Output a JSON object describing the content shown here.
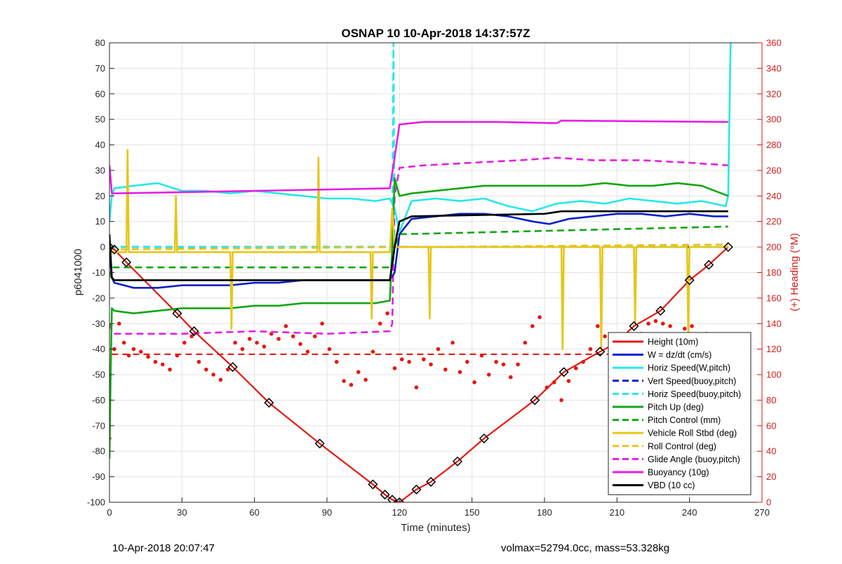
{
  "chart_data": {
    "type": "line",
    "title": "OSNAP 10 10-Apr-2018 14:37:57Z",
    "xlabel": "Time (minutes)",
    "ylabel": "p6041000",
    "y2label": "(+) Heading (°M)",
    "xlim": [
      0,
      270
    ],
    "ylim": [
      -100,
      80
    ],
    "y2lim": [
      0,
      360
    ],
    "xticks": [
      0,
      30,
      60,
      90,
      120,
      150,
      180,
      210,
      240,
      270
    ],
    "yticks": [
      -100,
      -90,
      -80,
      -70,
      -60,
      -50,
      -40,
      -30,
      -20,
      -10,
      0,
      10,
      20,
      30,
      40,
      50,
      60,
      70,
      80
    ],
    "y2ticks": [
      0,
      20,
      40,
      60,
      80,
      100,
      120,
      140,
      160,
      180,
      200,
      220,
      240,
      260,
      280,
      300,
      320,
      340,
      360
    ],
    "grid": true,
    "legend_position": "bottom-right",
    "colors": {
      "red": "#e8170f",
      "blue": "#0a1fc9",
      "cyan": "#27e8e8",
      "green": "#14a614",
      "yellow": "#e6c619",
      "magenta": "#e31fe3",
      "black": "#000000",
      "right_axis": "#d41a1a"
    },
    "series": [
      {
        "name": "Height (10m)",
        "color": "red",
        "dash": false,
        "x": [
          0,
          2,
          7,
          28,
          35,
          51,
          66,
          87,
          109,
          114,
          117,
          120,
          127,
          133,
          144,
          155,
          176,
          188,
          203,
          209,
          217,
          228,
          240,
          248,
          256
        ],
        "y": [
          0,
          -1,
          -6,
          -26,
          -33,
          -47,
          -61,
          -77,
          -93,
          -97,
          -99,
          -100,
          -95,
          -92,
          -84,
          -75,
          -60,
          -49,
          -41,
          -38,
          -31,
          -25,
          -13,
          -7,
          0
        ]
      },
      {
        "name": "W = dz/dt (cm/s)",
        "color": "blue",
        "dash": false,
        "x": [
          0,
          1,
          2,
          10,
          20,
          30,
          40,
          50,
          60,
          70,
          80,
          90,
          100,
          110,
          116,
          118,
          120,
          125,
          135,
          145,
          155,
          165,
          175,
          182,
          190,
          200,
          210,
          220,
          230,
          240,
          250,
          256
        ],
        "y": [
          -2,
          -12,
          -14,
          -16,
          -16,
          -15,
          -15,
          -15,
          -14,
          -14,
          -13,
          -13,
          -13,
          -13,
          -13,
          -10,
          5,
          11,
          12,
          13,
          13,
          12,
          10,
          9,
          11,
          12,
          13,
          13,
          12,
          13,
          12,
          12
        ]
      },
      {
        "name": "Horiz Speed(W,pitch)",
        "color": "cyan",
        "dash": false,
        "x": [
          0,
          1,
          2,
          10,
          20,
          30,
          40,
          50,
          60,
          70,
          80,
          90,
          100,
          110,
          116,
          118,
          120,
          125,
          135,
          145,
          155,
          165,
          175,
          185,
          195,
          205,
          215,
          225,
          235,
          245,
          255,
          256,
          257
        ],
        "y": [
          10,
          20,
          23,
          24,
          25,
          22,
          22,
          21,
          22,
          21,
          20,
          19,
          19,
          18,
          19,
          15,
          6,
          18,
          19,
          18,
          19,
          16,
          14,
          17,
          18,
          17,
          19,
          18,
          17,
          18,
          16,
          20,
          80
        ]
      },
      {
        "name": "Vert Speed(buoy,pitch)",
        "color": "blue",
        "dash": true,
        "x": [
          0,
          256
        ],
        "y": [
          0,
          0
        ]
      },
      {
        "name": "Horiz Speed(buoy,pitch)",
        "color": "cyan",
        "dash": true,
        "x": [
          0,
          117,
          117.5,
          118,
          119,
          256
        ],
        "y": [
          0,
          0,
          80,
          0,
          0,
          0
        ]
      },
      {
        "name": "Pitch Up (deg)",
        "color": "green",
        "dash": false,
        "x": [
          0,
          0.5,
          1,
          2,
          10,
          20,
          30,
          40,
          50,
          60,
          70,
          80,
          90,
          100,
          110,
          116,
          117,
          118,
          120,
          125,
          135,
          145,
          155,
          165,
          175,
          185,
          195,
          205,
          215,
          225,
          235,
          245,
          256
        ],
        "y": [
          -83,
          -50,
          -24,
          -25,
          -26,
          -25,
          -24,
          -24,
          -24,
          -23,
          -23,
          -22,
          -22,
          -22,
          -22,
          -21,
          0,
          27,
          20,
          21,
          22,
          23,
          24,
          24,
          24,
          24,
          24,
          25,
          24,
          24,
          25,
          24,
          20
        ]
      },
      {
        "name": "Pitch Control (mm)",
        "color": "green",
        "dash": true,
        "x": [
          0,
          1,
          2,
          116,
          117,
          118,
          120,
          256
        ],
        "y": [
          -12,
          -8,
          -8,
          -8,
          -8,
          0,
          5,
          8
        ]
      },
      {
        "name": "Vehicle Roll Stbd (deg)",
        "color": "yellow",
        "dash": false,
        "x": [
          0,
          7,
          7.5,
          8,
          10,
          27,
          27.5,
          28,
          30,
          50,
          50.5,
          51,
          55,
          86,
          86.5,
          87,
          90,
          108,
          108.5,
          109,
          116,
          117,
          118,
          120,
          132,
          132.5,
          133,
          135,
          187,
          187.5,
          188,
          190,
          203,
          203.5,
          204,
          206,
          217,
          217.5,
          218,
          220,
          239,
          239.5,
          240,
          242,
          255,
          256
        ],
        "y": [
          -2,
          -2,
          38,
          -2,
          -2,
          -2,
          20,
          -2,
          -2,
          -2,
          -32,
          -2,
          -2,
          -2,
          35,
          -2,
          -2,
          -2,
          -28,
          -2,
          -2,
          15,
          0,
          0,
          0,
          -28,
          0,
          0,
          0,
          -40,
          0,
          0,
          0,
          -40,
          0,
          0,
          0,
          -30,
          0,
          0,
          0,
          -35,
          0,
          0,
          0,
          0
        ]
      },
      {
        "name": "Roll Control (deg)",
        "color": "yellow",
        "dash": true,
        "x": [
          0,
          256
        ],
        "y": [
          -1,
          1
        ]
      },
      {
        "name": "Glide Angle (buoy,pitch)",
        "color": "magenta",
        "dash": true,
        "x": [
          0,
          1,
          2,
          10,
          30,
          60,
          90,
          116,
          117,
          118,
          120,
          130,
          150,
          170,
          185,
          200,
          220,
          240,
          256
        ],
        "y": [
          -30,
          -33,
          -34,
          -34,
          -34,
          -33,
          -34,
          -33,
          -30,
          20,
          31,
          32,
          33,
          34,
          35,
          34,
          34,
          33,
          32
        ]
      },
      {
        "name": "Buoyancy (10g)",
        "color": "magenta",
        "dash": false,
        "x": [
          0,
          1,
          2,
          60,
          116,
          118,
          120,
          130,
          160,
          185,
          187,
          256
        ],
        "y": [
          32,
          21,
          21,
          22,
          23,
          35,
          48,
          49,
          49,
          48.5,
          49.5,
          49
        ]
      },
      {
        "name": "VBD (10 cc)",
        "color": "black",
        "dash": false,
        "x": [
          0,
          1,
          2,
          116,
          118,
          120,
          125,
          180,
          187,
          200,
          256
        ],
        "y": [
          5,
          -12,
          -13,
          -13,
          0,
          10,
          12,
          13,
          14,
          14,
          14
        ]
      }
    ],
    "heading": {
      "color": "red",
      "mean_heading": 116,
      "x": [
        0,
        2,
        4,
        6,
        8,
        10,
        13,
        16,
        19,
        22,
        25,
        28,
        31,
        34,
        37,
        40,
        43,
        46,
        49,
        52,
        55,
        58,
        61,
        64,
        67,
        70,
        73,
        76,
        79,
        82,
        85,
        88,
        91,
        94,
        97,
        100,
        103,
        106,
        109,
        112,
        115,
        118,
        121,
        124,
        127,
        130,
        133,
        136,
        139,
        142,
        145,
        148,
        151,
        154,
        157,
        160,
        163,
        166,
        169,
        172,
        175,
        178,
        181,
        184,
        187,
        190,
        193,
        196,
        199,
        202,
        205,
        208,
        211,
        214,
        217,
        220,
        223,
        226,
        229,
        232,
        235,
        238,
        241,
        244,
        247,
        250,
        253,
        256
      ],
      "y": [
        50,
        120,
        140,
        125,
        115,
        120,
        118,
        114,
        110,
        108,
        104,
        115,
        125,
        130,
        110,
        104,
        100,
        96,
        104,
        125,
        120,
        128,
        125,
        122,
        132,
        128,
        138,
        130,
        124,
        118,
        130,
        140,
        120,
        110,
        95,
        92,
        102,
        96,
        118,
        140,
        148,
        105,
        112,
        110,
        90,
        112,
        108,
        120,
        104,
        125,
        102,
        110,
        94,
        115,
        100,
        110,
        108,
        98,
        108,
        125,
        138,
        145,
        90,
        94,
        80,
        95,
        105,
        110,
        120,
        138,
        130,
        112,
        118,
        120,
        124,
        132,
        140,
        142,
        140,
        138,
        130,
        136,
        138,
        120,
        132,
        128,
        130,
        124
      ]
    },
    "markers": {
      "x": [
        0,
        2,
        7,
        28,
        35,
        51,
        66,
        87,
        109,
        114,
        117,
        120,
        127,
        133,
        144,
        155,
        176,
        188,
        203,
        209,
        217,
        228,
        240,
        248,
        256
      ],
      "y": [
        0,
        -1,
        -6,
        -26,
        -33,
        -47,
        -61,
        -77,
        -93,
        -97,
        -99,
        -100,
        -95,
        -92,
        -84,
        -75,
        -60,
        -49,
        -41,
        -38,
        -31,
        -25,
        -13,
        -7,
        0
      ]
    }
  },
  "footer": {
    "left": "10-Apr-2018 20:07:47",
    "right": "volmax=52794.0cc, mass=53.328kg"
  }
}
